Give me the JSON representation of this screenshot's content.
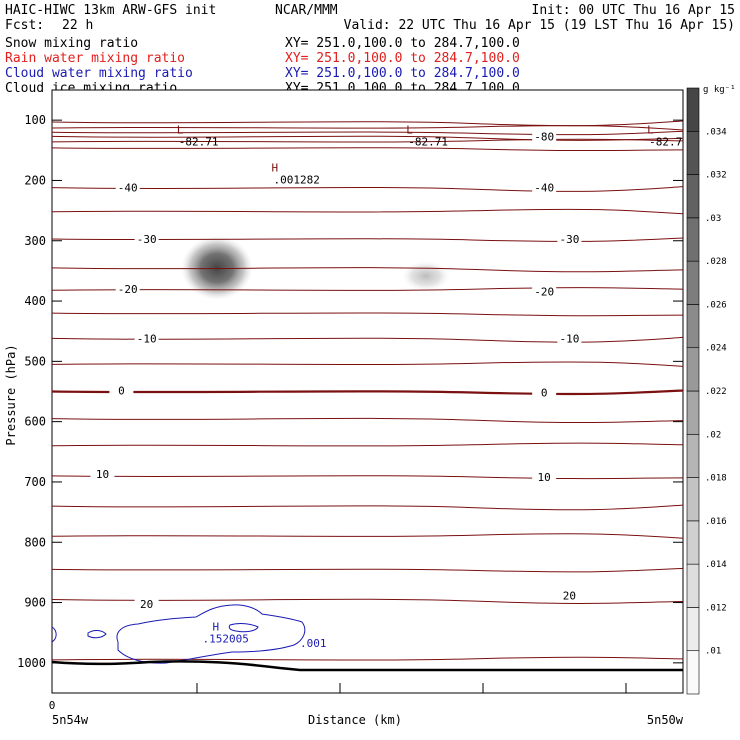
{
  "header": {
    "line1_left": "HAIC-HIWC 13km ARW-GFS init",
    "line1_center": "NCAR/MMM",
    "line1_right": "Init: 00 UTC Thu 16 Apr 15",
    "fcst_label": "Fcst:",
    "fcst_value": "22 h",
    "valid": "Valid: 22 UTC Thu 16 Apr 15 (19 LST Thu 16 Apr 15)"
  },
  "fields": [
    {
      "name": "Snow mixing ratio",
      "xy": "XY= 251.0,100.0 to 284.7,100.0",
      "color": "#000000"
    },
    {
      "name": "Rain water mixing ratio",
      "xy": "XY= 251.0,100.0 to 284.7,100.0",
      "color": "#e0201e"
    },
    {
      "name": "Cloud water mixing ratio",
      "xy": "XY= 251.0,100.0 to 284.7,100.0",
      "color": "#1a1ab4"
    },
    {
      "name": "Cloud ice mixing ratio",
      "xy": "XY= 251.0,100.0 to 284.7,100.0",
      "color": "#000000"
    }
  ],
  "chart_data": {
    "type": "contour",
    "ylabel": "Pressure (hPa)",
    "xlabel": "Distance (km)",
    "x_left_label": "5n54w",
    "x_right_label": "5n50w",
    "x_zero_label": "0",
    "ylim": [
      1050,
      50
    ],
    "yticks": [
      100,
      200,
      300,
      400,
      500,
      600,
      700,
      800,
      900,
      1000
    ],
    "isotherm_labels": [
      {
        "text": "-80",
        "x": 0.78,
        "p": 127
      },
      {
        "text": "-40",
        "x": 0.12,
        "p": 212
      },
      {
        "text": "-40",
        "x": 0.78,
        "p": 212
      },
      {
        "text": "-30",
        "x": 0.15,
        "p": 297
      },
      {
        "text": "-30",
        "x": 0.82,
        "p": 297
      },
      {
        "text": "-20",
        "x": 0.12,
        "p": 380
      },
      {
        "text": "-20",
        "x": 0.78,
        "p": 384
      },
      {
        "text": "-10",
        "x": 0.15,
        "p": 462
      },
      {
        "text": "-10",
        "x": 0.82,
        "p": 462
      },
      {
        "text": "0",
        "x": 0.11,
        "p": 548
      },
      {
        "text": "0",
        "x": 0.78,
        "p": 552
      },
      {
        "text": "10",
        "x": 0.08,
        "p": 687
      },
      {
        "text": "10",
        "x": 0.78,
        "p": 692
      },
      {
        "text": "20",
        "x": 0.15,
        "p": 902
      },
      {
        "text": "20",
        "x": 0.82,
        "p": 888
      }
    ],
    "extrema_labels": [
      {
        "mark": "L",
        "value": "-82.71",
        "x": 0.47,
        "p": 82
      },
      {
        "mark": "L",
        "value": "-82.71",
        "x": 1.27,
        "p": 82
      },
      {
        "mark": "L",
        "value": "-82.7",
        "x": 2.11,
        "p": 82
      },
      {
        "mark": "H",
        "value": ".001282",
        "x": 0.8,
        "p": 145
      }
    ],
    "cloud_water_labels": [
      {
        "mark": "H",
        "value": ".152005",
        "x": 0.42,
        "p": 960
      },
      {
        "mark": "",
        "value": ".001",
        "x": 0.76,
        "p": 967
      }
    ],
    "colorbar": {
      "unit": "g kg⁻¹",
      "levels": [
        ".01",
        ".012",
        ".014",
        ".016",
        ".018",
        ".02",
        ".022",
        ".024",
        ".026",
        ".028",
        ".03",
        ".032",
        ".034"
      ]
    }
  }
}
